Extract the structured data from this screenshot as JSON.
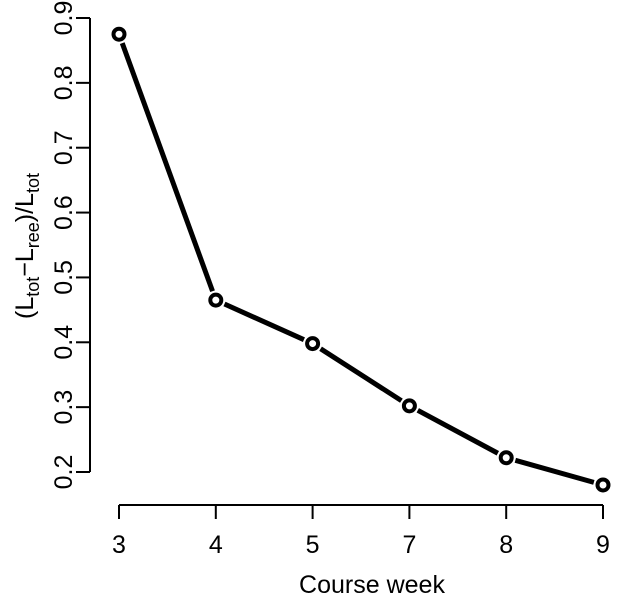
{
  "chart_data": {
    "type": "line",
    "categories": [
      "3",
      "4",
      "5",
      "7",
      "8",
      "9"
    ],
    "values": [
      0.875,
      0.465,
      0.398,
      0.302,
      0.222,
      0.18
    ],
    "title": "",
    "xlabel": "Course week",
    "ylabel_parts": {
      "open": "(L",
      "sub1": "tot",
      "minus": "−L",
      "sub2": "ree",
      "mid": ")/L",
      "sub3": "tot"
    },
    "yticks": [
      "0.2",
      "0.3",
      "0.4",
      "0.5",
      "0.6",
      "0.7",
      "0.8",
      "0.9"
    ],
    "ylim": [
      0.2,
      0.9
    ],
    "grid": false,
    "legend": "none",
    "line_color": "#000000",
    "marker": "open-circle"
  }
}
